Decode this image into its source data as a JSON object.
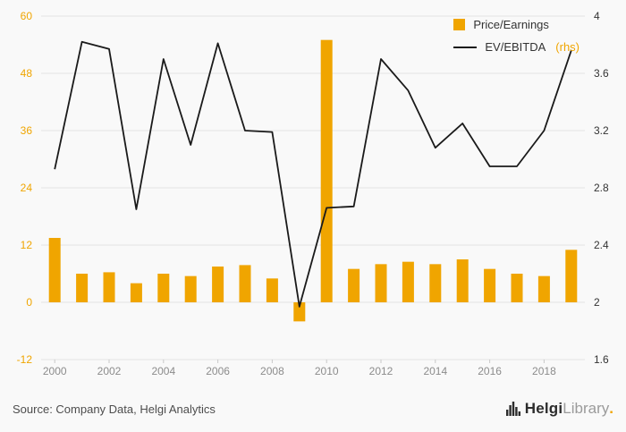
{
  "colors": {
    "background": "#f9f9f9",
    "bar": "#F0A500",
    "line": "#1a1a1a",
    "grid": "#e3e3e3",
    "left_tick": "#F0A500",
    "right_tick": "#333333",
    "x_tick": "#8c8c8c",
    "x_tick_mark": "#c9c9c9"
  },
  "legend": {
    "series1": "Price/Earnings",
    "series2": "EV/EBITDA",
    "series2_suffix": "(rhs)"
  },
  "footer": {
    "source": "Source: Company Data, Helgi Analytics",
    "brand_name": "Helgi",
    "brand_suffix": "Library",
    "brand_dot": "."
  },
  "chart_data": {
    "type": "bar",
    "subtype": "bar+line combo, dual axis",
    "title": "",
    "xlabel": "",
    "ylabel_left": "",
    "ylabel_right": "",
    "grid": "horizontal",
    "legend_position": "top-right",
    "categories": [
      "2000",
      "2001",
      "2002",
      "2003",
      "2004",
      "2005",
      "2006",
      "2007",
      "2008",
      "2009",
      "2010",
      "2011",
      "2012",
      "2013",
      "2014",
      "2015",
      "2016",
      "2017",
      "2018",
      "2019"
    ],
    "series": [
      {
        "name": "Price/Earnings",
        "type": "bar",
        "axis": "left",
        "color": "#F0A500",
        "values": [
          13.5,
          6,
          6.3,
          4,
          6,
          5.5,
          7.5,
          7.8,
          5,
          -4,
          55,
          7,
          8,
          8.5,
          8,
          9,
          7,
          6,
          5.5,
          11
        ]
      },
      {
        "name": "EV/EBITDA (rhs)",
        "type": "line",
        "axis": "right",
        "color": "#1a1a1a",
        "values": [
          2.93,
          3.82,
          3.77,
          2.65,
          3.7,
          3.1,
          3.81,
          3.2,
          3.19,
          1.97,
          2.66,
          2.67,
          3.7,
          3.48,
          3.08,
          3.25,
          2.95,
          2.95,
          3.2,
          3.76
        ]
      }
    ],
    "left_axis": {
      "min": -12,
      "max": 60,
      "ticks": [
        60,
        48,
        36,
        24,
        12,
        0,
        -12
      ]
    },
    "right_axis": {
      "min": 1.6,
      "max": 4,
      "ticks": [
        4,
        3.6,
        3.2,
        2.8,
        2.4,
        2,
        1.6
      ]
    },
    "x_ticks": [
      "2000",
      "2002",
      "2004",
      "2006",
      "2008",
      "2010",
      "2012",
      "2014",
      "2016",
      "2018"
    ]
  }
}
